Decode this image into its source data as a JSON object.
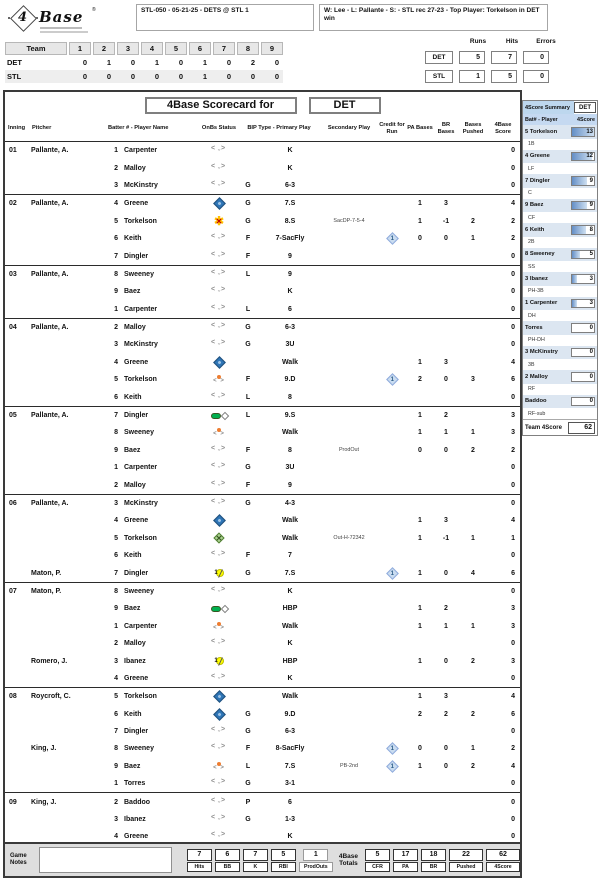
{
  "header": {
    "logo_number": "4",
    "logo_name": "Base",
    "logo_reg": "®",
    "game_info": "STL-050 - 05-21-25 - DETS @ STL 1",
    "result_info": "W: Lee  - L: Pallante  - S:   - STL rec 27-23 - Top Player: Torkelson in DET win"
  },
  "linescore": {
    "team_header": "Team",
    "innings": [
      "1",
      "2",
      "3",
      "4",
      "5",
      "6",
      "7",
      "8",
      "9"
    ],
    "rows": [
      {
        "team": "DET",
        "values": [
          "0",
          "1",
          "0",
          "1",
          "0",
          "1",
          "0",
          "2",
          "0"
        ]
      },
      {
        "team": "STL",
        "values": [
          "0",
          "0",
          "0",
          "0",
          "0",
          "1",
          "0",
          "0",
          "0"
        ]
      }
    ],
    "rhe": {
      "labels": [
        "Runs",
        "Hits",
        "Errors"
      ],
      "rows": [
        {
          "team": "DET",
          "values": [
            "5",
            "7",
            "0"
          ]
        },
        {
          "team": "STL",
          "values": [
            "1",
            "5",
            "0"
          ]
        }
      ]
    }
  },
  "scorecard": {
    "title": "4Base Scorecard for",
    "team": "DET",
    "columns": [
      "Inning",
      "Pitcher",
      "Batter # - Player Name",
      "OnBs Status",
      "BIP Type - Primary Play",
      "Secondary Play",
      "Credit for Run",
      "PA Bases",
      "BR Bases",
      "Bases Pushed",
      "4Base Score"
    ],
    "innings": [
      {
        "inning": "01",
        "rows": [
          {
            "pitcher": "Pallante, A.",
            "num": "1",
            "name": "Carpenter",
            "onbs": "angles",
            "bip": "",
            "primary": "K",
            "secondary": "",
            "cfr": "",
            "pa": "",
            "br": "",
            "pushed": "",
            "score": "0"
          },
          {
            "pitcher": "",
            "num": "2",
            "name": "Malloy",
            "onbs": "angles",
            "bip": "",
            "primary": "K",
            "secondary": "",
            "cfr": "",
            "pa": "",
            "br": "",
            "pushed": "",
            "score": "0"
          },
          {
            "pitcher": "",
            "num": "3",
            "name": "McKinstry",
            "onbs": "angles",
            "bip": "G",
            "primary": "6-3",
            "secondary": "",
            "cfr": "",
            "pa": "",
            "br": "",
            "pushed": "",
            "score": "0"
          }
        ]
      },
      {
        "inning": "02",
        "rows": [
          {
            "pitcher": "Pallante, A.",
            "num": "4",
            "name": "Greene",
            "onbs": "blue-diamond",
            "bip": "G",
            "primary": "7.S",
            "secondary": "",
            "cfr": "",
            "pa": "1",
            "br": "3",
            "pushed": "",
            "score": "4"
          },
          {
            "pitcher": "",
            "num": "5",
            "name": "Torkelson",
            "onbs": "orange-x",
            "bip": "G",
            "primary": "8.S",
            "secondary": "SacDP-7-5-4",
            "cfr": "",
            "pa": "1",
            "br": "-1",
            "pushed": "2",
            "score": "2"
          },
          {
            "pitcher": "",
            "num": "6",
            "name": "Keith",
            "onbs": "angles",
            "bip": "F",
            "primary": "7-SacFly",
            "secondary": "",
            "cfr": "1",
            "pa": "0",
            "br": "0",
            "pushed": "1",
            "score": "2"
          },
          {
            "pitcher": "",
            "num": "7",
            "name": "Dingler",
            "onbs": "angles",
            "bip": "F",
            "primary": "9",
            "secondary": "",
            "cfr": "",
            "pa": "",
            "br": "",
            "pushed": "",
            "score": "0"
          }
        ]
      },
      {
        "inning": "03",
        "rows": [
          {
            "pitcher": "Pallante, A.",
            "num": "8",
            "name": "Sweeney",
            "onbs": "angles",
            "bip": "L",
            "primary": "9",
            "secondary": "",
            "cfr": "",
            "pa": "",
            "br": "",
            "pushed": "",
            "score": "0"
          },
          {
            "pitcher": "",
            "num": "9",
            "name": "Baez",
            "onbs": "angles",
            "bip": "",
            "primary": "K",
            "secondary": "",
            "cfr": "",
            "pa": "",
            "br": "",
            "pushed": "",
            "score": "0"
          },
          {
            "pitcher": "",
            "num": "1",
            "name": "Carpenter",
            "onbs": "angles",
            "bip": "L",
            "primary": "6",
            "secondary": "",
            "cfr": "",
            "pa": "",
            "br": "",
            "pushed": "",
            "score": "0"
          }
        ]
      },
      {
        "inning": "04",
        "rows": [
          {
            "pitcher": "Pallante, A.",
            "num": "2",
            "name": "Malloy",
            "onbs": "angles",
            "bip": "G",
            "primary": "6-3",
            "secondary": "",
            "cfr": "",
            "pa": "",
            "br": "",
            "pushed": "",
            "score": "0"
          },
          {
            "pitcher": "",
            "num": "3",
            "name": "McKinstry",
            "onbs": "angles",
            "bip": "G",
            "primary": "3U",
            "secondary": "",
            "cfr": "",
            "pa": "",
            "br": "",
            "pushed": "",
            "score": "0"
          },
          {
            "pitcher": "",
            "num": "4",
            "name": "Greene",
            "onbs": "blue-diamond",
            "bip": "",
            "primary": "Walk",
            "secondary": "",
            "cfr": "",
            "pa": "1",
            "br": "3",
            "pushed": "",
            "score": "4"
          },
          {
            "pitcher": "",
            "num": "5",
            "name": "Torkelson",
            "onbs": "orange-runner",
            "bip": "F",
            "primary": "9.D",
            "secondary": "",
            "cfr": "1",
            "pa": "2",
            "br": "0",
            "pushed": "3",
            "score": "6"
          },
          {
            "pitcher": "",
            "num": "6",
            "name": "Keith",
            "onbs": "angles",
            "bip": "L",
            "primary": "8",
            "secondary": "",
            "cfr": "",
            "pa": "",
            "br": "",
            "pushed": "",
            "score": "0"
          }
        ]
      },
      {
        "inning": "05",
        "rows": [
          {
            "pitcher": "Pallante, A.",
            "num": "7",
            "name": "Dingler",
            "onbs": "green-arrow",
            "bip": "L",
            "primary": "9.S",
            "secondary": "",
            "cfr": "",
            "pa": "1",
            "br": "2",
            "pushed": "",
            "score": "3"
          },
          {
            "pitcher": "",
            "num": "8",
            "name": "Sweeney",
            "onbs": "orange-runner",
            "bip": "",
            "primary": "Walk",
            "secondary": "",
            "cfr": "",
            "pa": "1",
            "br": "1",
            "pushed": "1",
            "score": "3"
          },
          {
            "pitcher": "",
            "num": "9",
            "name": "Baez",
            "onbs": "angles",
            "bip": "F",
            "primary": "8",
            "secondary": "ProdOut",
            "cfr": "",
            "pa": "0",
            "br": "0",
            "pushed": "2",
            "score": "2"
          },
          {
            "pitcher": "",
            "num": "1",
            "name": "Carpenter",
            "onbs": "angles",
            "bip": "G",
            "primary": "3U",
            "secondary": "",
            "cfr": "",
            "pa": "",
            "br": "",
            "pushed": "",
            "score": "0"
          },
          {
            "pitcher": "",
            "num": "2",
            "name": "Malloy",
            "onbs": "angles",
            "bip": "F",
            "primary": "9",
            "secondary": "",
            "cfr": "",
            "pa": "",
            "br": "",
            "pushed": "",
            "score": "0"
          }
        ]
      },
      {
        "inning": "06",
        "rows": [
          {
            "pitcher": "Pallante, A.",
            "num": "3",
            "name": "McKinstry",
            "onbs": "angles",
            "bip": "G",
            "primary": "4-3",
            "secondary": "",
            "cfr": "",
            "pa": "",
            "br": "",
            "pushed": "",
            "score": "0"
          },
          {
            "pitcher": "",
            "num": "4",
            "name": "Greene",
            "onbs": "blue-diamond",
            "bip": "",
            "primary": "Walk",
            "secondary": "",
            "cfr": "",
            "pa": "1",
            "br": "3",
            "pushed": "",
            "score": "4"
          },
          {
            "pitcher": "",
            "num": "5",
            "name": "Torkelson",
            "onbs": "green-x",
            "bip": "",
            "primary": "Walk",
            "secondary": "Out-H-72342",
            "cfr": "",
            "pa": "1",
            "br": "-1",
            "pushed": "1",
            "score": "1"
          },
          {
            "pitcher": "",
            "num": "6",
            "name": "Keith",
            "onbs": "angles",
            "bip": "F",
            "primary": "7",
            "secondary": "",
            "cfr": "",
            "pa": "",
            "br": "",
            "pushed": "",
            "score": "0"
          },
          {
            "pitcher": "Maton, P.",
            "num": "7",
            "name": "Dingler",
            "onbs": "yellow-ball",
            "bip": "G",
            "primary": "7.S",
            "secondary": "",
            "cfr": "1",
            "pa": "1",
            "br": "0",
            "pushed": "4",
            "score": "6"
          }
        ]
      },
      {
        "inning": "07",
        "rows": [
          {
            "pitcher": "Maton, P.",
            "num": "8",
            "name": "Sweeney",
            "onbs": "angles",
            "bip": "",
            "primary": "K",
            "secondary": "",
            "cfr": "",
            "pa": "",
            "br": "",
            "pushed": "",
            "score": "0"
          },
          {
            "pitcher": "",
            "num": "9",
            "name": "Baez",
            "onbs": "green-arrow",
            "bip": "",
            "primary": "HBP",
            "secondary": "",
            "cfr": "",
            "pa": "1",
            "br": "2",
            "pushed": "",
            "score": "3"
          },
          {
            "pitcher": "",
            "num": "1",
            "name": "Carpenter",
            "onbs": "orange-runner",
            "bip": "",
            "primary": "Walk",
            "secondary": "",
            "cfr": "",
            "pa": "1",
            "br": "1",
            "pushed": "1",
            "score": "3"
          },
          {
            "pitcher": "",
            "num": "2",
            "name": "Malloy",
            "onbs": "angles",
            "bip": "",
            "primary": "K",
            "secondary": "",
            "cfr": "",
            "pa": "",
            "br": "",
            "pushed": "",
            "score": "0"
          },
          {
            "pitcher": "Romero, J.",
            "num": "3",
            "name": "Ibanez",
            "onbs": "yellow-ball",
            "bip": "",
            "primary": "HBP",
            "secondary": "",
            "cfr": "",
            "pa": "1",
            "br": "0",
            "pushed": "2",
            "score": "3"
          },
          {
            "pitcher": "",
            "num": "4",
            "name": "Greene",
            "onbs": "angles",
            "bip": "",
            "primary": "K",
            "secondary": "",
            "cfr": "",
            "pa": "",
            "br": "",
            "pushed": "",
            "score": "0"
          }
        ]
      },
      {
        "inning": "08",
        "rows": [
          {
            "pitcher": "Roycroft, C.",
            "num": "5",
            "name": "Torkelson",
            "onbs": "blue-diamond",
            "bip": "",
            "primary": "Walk",
            "secondary": "",
            "cfr": "",
            "pa": "1",
            "br": "3",
            "pushed": "",
            "score": "4"
          },
          {
            "pitcher": "",
            "num": "6",
            "name": "Keith",
            "onbs": "blue-diamond",
            "bip": "G",
            "primary": "9.D",
            "secondary": "",
            "cfr": "",
            "pa": "2",
            "br": "2",
            "pushed": "2",
            "score": "6"
          },
          {
            "pitcher": "",
            "num": "7",
            "name": "Dingler",
            "onbs": "angles",
            "bip": "G",
            "primary": "6-3",
            "secondary": "",
            "cfr": "",
            "pa": "",
            "br": "",
            "pushed": "",
            "score": "0"
          },
          {
            "pitcher": "King, J.",
            "num": "8",
            "name": "Sweeney",
            "onbs": "angles",
            "bip": "F",
            "primary": "8-SacFly",
            "secondary": "",
            "cfr": "1",
            "pa": "0",
            "br": "0",
            "pushed": "1",
            "score": "2"
          },
          {
            "pitcher": "",
            "num": "9",
            "name": "Baez",
            "onbs": "orange-runner",
            "bip": "L",
            "primary": "7.S",
            "secondary": "PB-2nd",
            "cfr": "1",
            "pa": "1",
            "br": "0",
            "pushed": "2",
            "score": "4"
          },
          {
            "pitcher": "",
            "num": "1",
            "name": "Torres",
            "onbs": "angles",
            "bip": "G",
            "primary": "3-1",
            "secondary": "",
            "cfr": "",
            "pa": "",
            "br": "",
            "pushed": "",
            "score": "0"
          }
        ]
      },
      {
        "inning": "09",
        "rows": [
          {
            "pitcher": "King, J.",
            "num": "2",
            "name": "Baddoo",
            "onbs": "angles",
            "bip": "P",
            "primary": "6",
            "secondary": "",
            "cfr": "",
            "pa": "",
            "br": "",
            "pushed": "",
            "score": "0"
          },
          {
            "pitcher": "",
            "num": "3",
            "name": "Ibanez",
            "onbs": "angles",
            "bip": "G",
            "primary": "1-3",
            "secondary": "",
            "cfr": "",
            "pa": "",
            "br": "",
            "pushed": "",
            "score": "0"
          },
          {
            "pitcher": "",
            "num": "4",
            "name": "Greene",
            "onbs": "angles",
            "bip": "",
            "primary": "K",
            "secondary": "",
            "cfr": "",
            "pa": "",
            "br": "",
            "pushed": "",
            "score": "0"
          }
        ]
      }
    ]
  },
  "footer": {
    "game_notes_label": "Game Notes",
    "stats": [
      {
        "value": "7",
        "label": "Hits"
      },
      {
        "value": "6",
        "label": "BB"
      },
      {
        "value": "7",
        "label": "K"
      },
      {
        "value": "5",
        "label": "RBI"
      }
    ],
    "prodouts": {
      "value": "1",
      "label": "ProdOuts"
    },
    "totals_label_line1": "4Base",
    "totals_label_line2": "Totals",
    "totals": [
      {
        "value": "5",
        "label": "CFR"
      },
      {
        "value": "17",
        "label": "PA"
      },
      {
        "value": "18",
        "label": "BR"
      },
      {
        "value": "22",
        "label": "Pushed"
      },
      {
        "value": "62",
        "label": "4Score"
      }
    ]
  },
  "sidebar": {
    "title": "4Score Summary",
    "team": "DET",
    "col1": "Bat# - Player",
    "col2": "4Score",
    "max_score": 13,
    "players": [
      {
        "label": "5 Torkelson",
        "pos": "1B",
        "score": "13"
      },
      {
        "label": "4 Greene",
        "pos": "LF",
        "score": "12"
      },
      {
        "label": "7 Dingler",
        "pos": "C",
        "score": "9"
      },
      {
        "label": "9 Baez",
        "pos": "CF",
        "score": "9"
      },
      {
        "label": "6 Keith",
        "pos": "2B",
        "score": "8"
      },
      {
        "label": "8 Sweeney",
        "pos": "SS",
        "score": "5"
      },
      {
        "label": "3 Ibanez",
        "pos": "PH-3B",
        "score": "3"
      },
      {
        "label": "1 Carpenter",
        "pos": "DH",
        "score": "3"
      },
      {
        "label": "Torres",
        "pos": "PH-DH",
        "score": "0"
      },
      {
        "label": "3 McKinstry",
        "pos": "3B",
        "score": "0"
      },
      {
        "label": "2 Malloy",
        "pos": "RF",
        "score": "0"
      },
      {
        "label": "Baddoo",
        "pos": "RF-sub",
        "score": "0"
      }
    ],
    "team_total_label": "Team 4Score",
    "team_total": "62"
  },
  "colors": {
    "sidebar_header": "#bdd7ee",
    "sidebar_row": "#dce6f1",
    "databar": "#638ec6",
    "onbase_diamond": "#2e75b6",
    "cfr_diamond_fill": "#c9dcf0",
    "out_burst": "#ffc000",
    "runner_dot": "#ed7d31",
    "safe_green": "#00b050"
  }
}
